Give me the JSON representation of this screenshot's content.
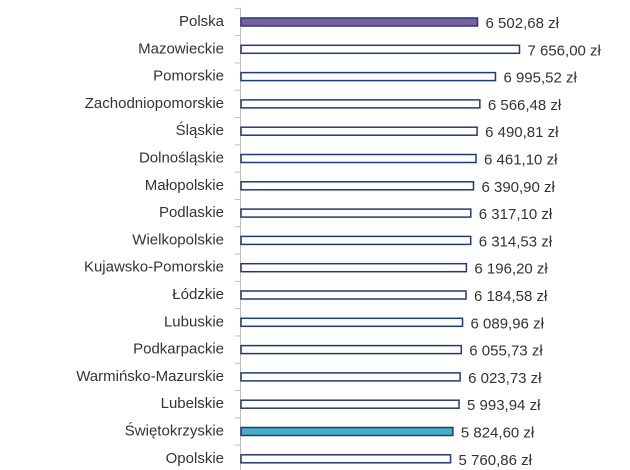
{
  "chart_data": {
    "type": "barh",
    "categories": [
      "Polska",
      "Mazowieckie",
      "Pomorskie",
      "Zachodniopomorskie",
      "Śląskie",
      "Dolnośląskie",
      "Małopolskie",
      "Podlaskie",
      "Wielkopolskie",
      "Kujawsko-Pomorskie",
      "Łódzkie",
      "Lubuskie",
      "Podkarpackie",
      "Warmińsko-Mazurskie",
      "Lubelskie",
      "Świętokrzyskie",
      "Opolskie"
    ],
    "values": [
      6502.68,
      7656.0,
      6995.52,
      6566.48,
      6490.81,
      6461.1,
      6390.9,
      6317.1,
      6314.53,
      6196.2,
      6184.58,
      6089.96,
      6055.73,
      6023.73,
      5993.94,
      5824.6,
      5760.86
    ],
    "value_labels": [
      "6 502,68 zł",
      "7 656,00 zł",
      "6 995,52 zł",
      "6 566,48 zł",
      "6 490,81 zł",
      "6 461,10 zł",
      "6 390,90 zł",
      "6 317,10 zł",
      "6 314,53 zł",
      "6 196,20 zł",
      "6 184,58 zł",
      "6 089,96 zł",
      "6 055,73 zł",
      "6 023,73 zł",
      "5 993,94 zł",
      "5 824,60 zł",
      "5 760,86 zł"
    ],
    "colors": [
      "#7d5fa6",
      "#ffffff",
      "#ffffff",
      "#ffffff",
      "#ffffff",
      "#ffffff",
      "#ffffff",
      "#ffffff",
      "#ffffff",
      "#ffffff",
      "#ffffff",
      "#ffffff",
      "#ffffff",
      "#ffffff",
      "#ffffff",
      "#4bacc6",
      "#ffffff"
    ],
    "edgecolor": "#1f3a7a",
    "xlim": [
      0,
      8000
    ]
  }
}
